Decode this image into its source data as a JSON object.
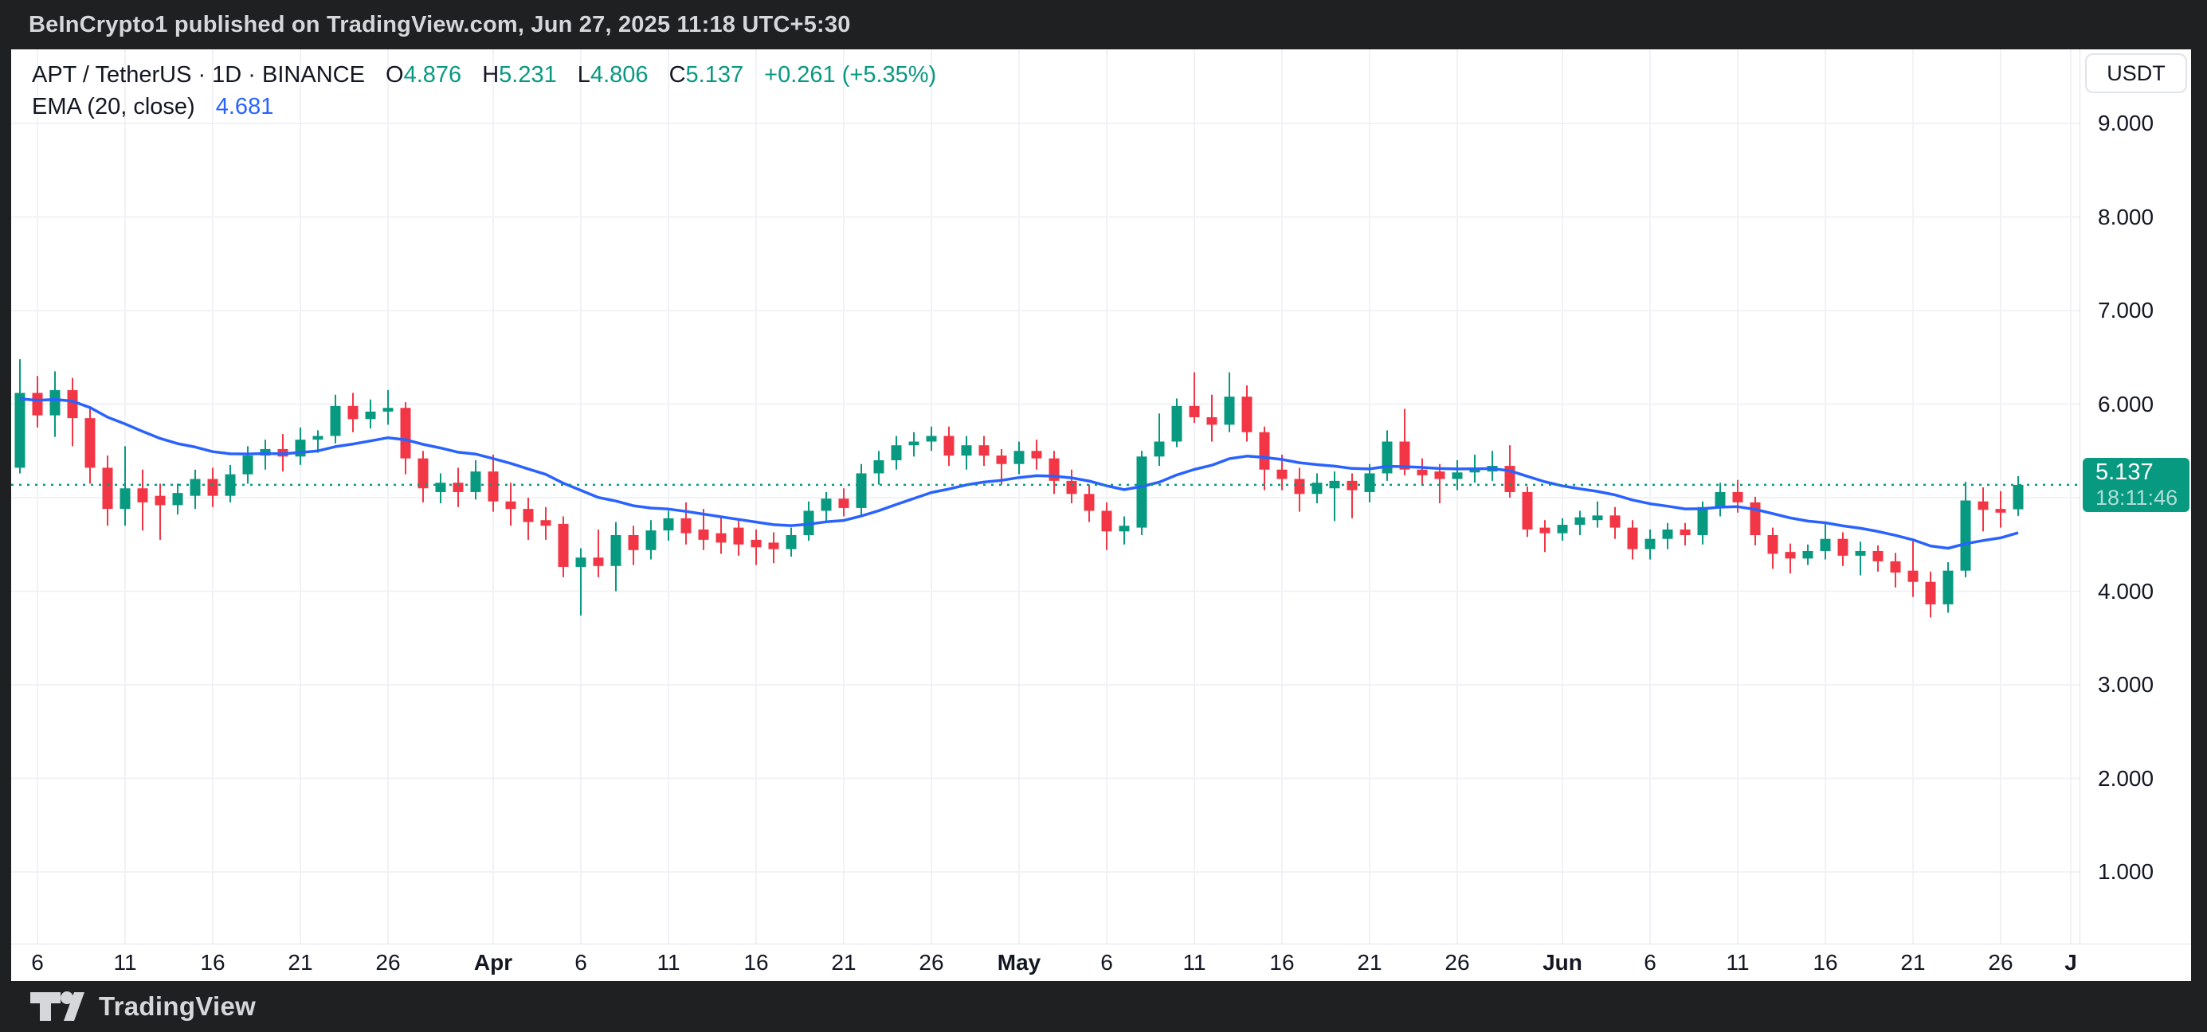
{
  "header": {
    "attribution": "BeInCrypto1 published on TradingView.com, Jun 27, 2025 11:18 UTC+5:30"
  },
  "legend": {
    "title": "APT / TetherUS · 1D · BINANCE",
    "ohlc": {
      "o_label": "O",
      "o_value": "4.876",
      "h_label": "H",
      "h_value": "5.231",
      "l_label": "L",
      "l_value": "4.806",
      "c_label": "C",
      "c_value": "5.137",
      "change": "+0.261 (+5.35%)"
    },
    "ema": {
      "name": "EMA (20, close)",
      "value": "4.681"
    }
  },
  "price_scale": {
    "currency_button": "USDT",
    "labels": [
      "9.000",
      "8.000",
      "7.000",
      "6.000",
      "4.000",
      "3.000",
      "2.000",
      "1.000"
    ],
    "last_price_tag": {
      "value": "5.137",
      "countdown": "18:11:46"
    }
  },
  "time_axis": {
    "ticks": [
      {
        "day": 0,
        "label": "6"
      },
      {
        "day": 5,
        "label": "11"
      },
      {
        "day": 10,
        "label": "16"
      },
      {
        "day": 15,
        "label": "21"
      },
      {
        "day": 20,
        "label": "26"
      },
      {
        "day": 26,
        "label": "Apr",
        "month": true
      },
      {
        "day": 31,
        "label": "6"
      },
      {
        "day": 36,
        "label": "11"
      },
      {
        "day": 41,
        "label": "16"
      },
      {
        "day": 46,
        "label": "21"
      },
      {
        "day": 51,
        "label": "26"
      },
      {
        "day": 56,
        "label": "May",
        "month": true
      },
      {
        "day": 61,
        "label": "6"
      },
      {
        "day": 66,
        "label": "11"
      },
      {
        "day": 71,
        "label": "16"
      },
      {
        "day": 76,
        "label": "21"
      },
      {
        "day": 81,
        "label": "26"
      },
      {
        "day": 87,
        "label": "Jun",
        "month": true
      },
      {
        "day": 92,
        "label": "6"
      },
      {
        "day": 97,
        "label": "11"
      },
      {
        "day": 102,
        "label": "16"
      },
      {
        "day": 107,
        "label": "21"
      },
      {
        "day": 112,
        "label": "26"
      },
      {
        "day": 116,
        "label": "J",
        "month": true
      }
    ]
  },
  "footer": {
    "brand": "TradingView"
  },
  "colors": {
    "up": "#089981",
    "down": "#f23645",
    "ema": "#2962ff",
    "grid": "#f0f2f5",
    "axis_border": "#e0e3eb",
    "text": "#131722",
    "price_line": "#089981",
    "tag_bg": "#089981",
    "frame": "#1e2022"
  },
  "chart_data": {
    "type": "candlestick",
    "symbol": "APT/USDT",
    "interval": "1D",
    "exchange": "BINANCE",
    "x_start_label": "Mar 5",
    "x_end_label": "Jun 27",
    "ylim": [
      0.23,
      9.79
    ],
    "grid_prices": [
      1,
      2,
      3,
      4,
      5,
      6,
      7,
      8,
      9
    ],
    "last_price": 5.137,
    "ema_period": 20,
    "ema_last": 4.681,
    "ohlc": [
      [
        5.32,
        6.48,
        5.26,
        6.12
      ],
      [
        6.12,
        6.3,
        5.75,
        5.88
      ],
      [
        5.88,
        6.35,
        5.65,
        6.15
      ],
      [
        6.15,
        6.28,
        5.55,
        5.85
      ],
      [
        5.85,
        5.95,
        5.15,
        5.32
      ],
      [
        5.32,
        5.45,
        4.7,
        4.88
      ],
      [
        4.88,
        5.55,
        4.7,
        5.1
      ],
      [
        5.1,
        5.3,
        4.65,
        4.95
      ],
      [
        5.02,
        5.15,
        4.55,
        4.92
      ],
      [
        4.92,
        5.15,
        4.82,
        5.05
      ],
      [
        5.02,
        5.3,
        4.88,
        5.2
      ],
      [
        5.2,
        5.32,
        4.9,
        5.02
      ],
      [
        5.02,
        5.35,
        4.95,
        5.25
      ],
      [
        5.25,
        5.55,
        5.15,
        5.45
      ],
      [
        5.45,
        5.62,
        5.3,
        5.52
      ],
      [
        5.52,
        5.68,
        5.28,
        5.44
      ],
      [
        5.44,
        5.75,
        5.35,
        5.62
      ],
      [
        5.62,
        5.72,
        5.48,
        5.66
      ],
      [
        5.66,
        6.1,
        5.58,
        5.98
      ],
      [
        5.98,
        6.12,
        5.7,
        5.84
      ],
      [
        5.84,
        6.05,
        5.74,
        5.92
      ],
      [
        5.92,
        6.15,
        5.78,
        5.96
      ],
      [
        5.96,
        6.02,
        5.25,
        5.42
      ],
      [
        5.42,
        5.5,
        4.95,
        5.1
      ],
      [
        5.06,
        5.26,
        4.94,
        5.16
      ],
      [
        5.16,
        5.32,
        4.9,
        5.06
      ],
      [
        5.06,
        5.4,
        4.98,
        5.28
      ],
      [
        5.28,
        5.46,
        4.85,
        4.96
      ],
      [
        4.96,
        5.16,
        4.7,
        4.88
      ],
      [
        4.88,
        5.0,
        4.55,
        4.74
      ],
      [
        4.76,
        4.9,
        4.55,
        4.7
      ],
      [
        4.72,
        4.8,
        4.15,
        4.26
      ],
      [
        4.26,
        4.46,
        3.74,
        4.36
      ],
      [
        4.36,
        4.66,
        4.15,
        4.27
      ],
      [
        4.27,
        4.74,
        4.0,
        4.6
      ],
      [
        4.6,
        4.7,
        4.28,
        4.44
      ],
      [
        4.44,
        4.76,
        4.34,
        4.65
      ],
      [
        4.65,
        4.86,
        4.54,
        4.78
      ],
      [
        4.78,
        4.95,
        4.5,
        4.62
      ],
      [
        4.66,
        4.88,
        4.44,
        4.55
      ],
      [
        4.62,
        4.8,
        4.4,
        4.52
      ],
      [
        4.68,
        4.78,
        4.38,
        4.5
      ],
      [
        4.55,
        4.66,
        4.28,
        4.47
      ],
      [
        4.52,
        4.63,
        4.3,
        4.45
      ],
      [
        4.45,
        4.68,
        4.37,
        4.6
      ],
      [
        4.6,
        4.96,
        4.54,
        4.86
      ],
      [
        4.86,
        5.06,
        4.74,
        4.99
      ],
      [
        4.99,
        5.1,
        4.8,
        4.89
      ],
      [
        4.89,
        5.36,
        4.8,
        5.26
      ],
      [
        5.26,
        5.5,
        5.14,
        5.4
      ],
      [
        5.4,
        5.66,
        5.3,
        5.56
      ],
      [
        5.56,
        5.7,
        5.44,
        5.6
      ],
      [
        5.6,
        5.76,
        5.5,
        5.66
      ],
      [
        5.66,
        5.76,
        5.34,
        5.45
      ],
      [
        5.45,
        5.66,
        5.3,
        5.56
      ],
      [
        5.56,
        5.66,
        5.34,
        5.45
      ],
      [
        5.45,
        5.52,
        5.14,
        5.36
      ],
      [
        5.36,
        5.6,
        5.25,
        5.5
      ],
      [
        5.5,
        5.62,
        5.3,
        5.42
      ],
      [
        5.42,
        5.5,
        5.04,
        5.18
      ],
      [
        5.18,
        5.3,
        4.94,
        5.04
      ],
      [
        5.04,
        5.14,
        4.74,
        4.86
      ],
      [
        4.86,
        4.95,
        4.44,
        4.64
      ],
      [
        4.64,
        4.8,
        4.5,
        4.7
      ],
      [
        4.68,
        5.5,
        4.6,
        5.44
      ],
      [
        5.44,
        5.9,
        5.34,
        5.6
      ],
      [
        5.6,
        6.06,
        5.54,
        5.98
      ],
      [
        5.98,
        6.34,
        5.8,
        5.86
      ],
      [
        5.86,
        6.1,
        5.6,
        5.78
      ],
      [
        5.78,
        6.34,
        5.7,
        6.08
      ],
      [
        6.08,
        6.2,
        5.6,
        5.7
      ],
      [
        5.7,
        5.76,
        5.08,
        5.3
      ],
      [
        5.3,
        5.46,
        5.08,
        5.2
      ],
      [
        5.2,
        5.32,
        4.85,
        5.04
      ],
      [
        5.04,
        5.26,
        4.94,
        5.16
      ],
      [
        5.1,
        5.28,
        4.75,
        5.18
      ],
      [
        5.18,
        5.26,
        4.78,
        5.08
      ],
      [
        5.06,
        5.36,
        4.95,
        5.26
      ],
      [
        5.26,
        5.72,
        5.18,
        5.6
      ],
      [
        5.6,
        5.95,
        5.24,
        5.3
      ],
      [
        5.3,
        5.42,
        5.14,
        5.24
      ],
      [
        5.28,
        5.36,
        4.94,
        5.2
      ],
      [
        5.2,
        5.4,
        5.08,
        5.27
      ],
      [
        5.27,
        5.46,
        5.16,
        5.32
      ],
      [
        5.28,
        5.5,
        5.18,
        5.34
      ],
      [
        5.34,
        5.56,
        5.0,
        5.06
      ],
      [
        5.06,
        5.12,
        4.58,
        4.66
      ],
      [
        4.68,
        4.76,
        4.42,
        4.62
      ],
      [
        4.62,
        4.78,
        4.54,
        4.71
      ],
      [
        4.71,
        4.86,
        4.6,
        4.79
      ],
      [
        4.76,
        4.96,
        4.68,
        4.81
      ],
      [
        4.81,
        4.9,
        4.56,
        4.68
      ],
      [
        4.68,
        4.76,
        4.34,
        4.45
      ],
      [
        4.45,
        4.66,
        4.34,
        4.56
      ],
      [
        4.56,
        4.73,
        4.45,
        4.66
      ],
      [
        4.66,
        4.73,
        4.49,
        4.6
      ],
      [
        4.6,
        4.96,
        4.5,
        4.9
      ],
      [
        4.9,
        5.16,
        4.8,
        5.06
      ],
      [
        5.06,
        5.19,
        4.84,
        4.95
      ],
      [
        4.95,
        5.01,
        4.49,
        4.6
      ],
      [
        4.6,
        4.68,
        4.24,
        4.4
      ],
      [
        4.42,
        4.51,
        4.19,
        4.35
      ],
      [
        4.35,
        4.5,
        4.28,
        4.43
      ],
      [
        4.43,
        4.72,
        4.34,
        4.56
      ],
      [
        4.56,
        4.63,
        4.27,
        4.38
      ],
      [
        4.38,
        4.53,
        4.17,
        4.43
      ],
      [
        4.43,
        4.49,
        4.21,
        4.32
      ],
      [
        4.32,
        4.41,
        4.04,
        4.2
      ],
      [
        4.22,
        4.56,
        3.94,
        4.1
      ],
      [
        4.1,
        4.21,
        3.72,
        3.86
      ],
      [
        3.86,
        4.31,
        3.77,
        4.22
      ],
      [
        4.22,
        5.17,
        4.15,
        4.97
      ],
      [
        4.96,
        5.11,
        4.64,
        4.87
      ],
      [
        4.88,
        5.07,
        4.68,
        4.84
      ],
      [
        4.876,
        5.231,
        4.806,
        5.137
      ]
    ]
  }
}
